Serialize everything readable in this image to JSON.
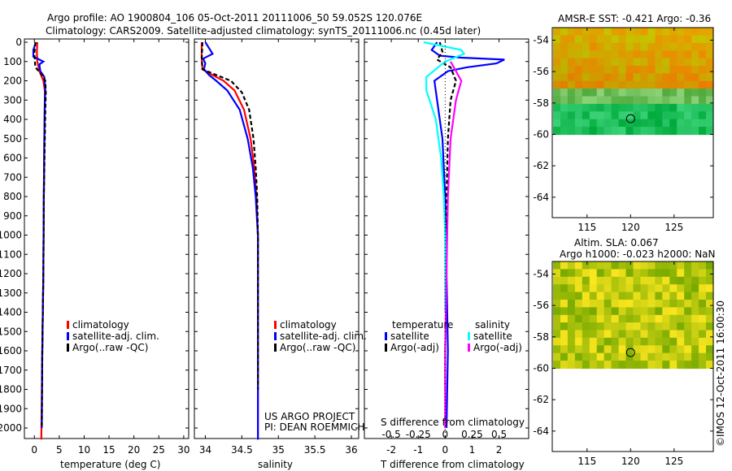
{
  "header": {
    "title_line1": "Argo profile: AO 1900804_106 05-Oct-2011 20111006_50 59.052S 120.076E",
    "title_line2": "Climatology: CARS2009. Satellite-adjusted climatology: synTS_20111006.nc (0.45d later)"
  },
  "credit": "US ARGO PROJECT",
  "pi": "PI: DEAN ROEMMICH",
  "footer_stamp": "©IMOS 12-Oct-2011 16:00:30",
  "colors": {
    "climatology": "#ff0000",
    "satellite_clim": "#0000ff",
    "argo": "#000000",
    "sat_diff_temp": "#0000ff",
    "sat_diff_sal": "#00ffff",
    "argo_diff_sal": "#ff00ff"
  },
  "chart_data": [
    {
      "type": "line",
      "panel": "temperature",
      "xlabel": "temperature (deg C)",
      "xlim": [
        -2,
        31
      ],
      "xticks": [
        0,
        5,
        10,
        15,
        20,
        25,
        30
      ],
      "ylim": [
        0,
        2080
      ],
      "yticks": [
        0,
        100,
        200,
        300,
        400,
        500,
        600,
        700,
        800,
        900,
        1000,
        1100,
        1200,
        1300,
        1400,
        1500,
        1600,
        1700,
        1800,
        1900,
        2000
      ],
      "y_reversed": true,
      "legend": {
        "placement": "center",
        "entries": [
          "climatology",
          "satellite-adj. clim.",
          "Argo(..raw -QC)"
        ]
      },
      "series": [
        {
          "name": "climatology",
          "color": "#ff0000",
          "points": [
            [
              0.6,
              0
            ],
            [
              0.5,
              50
            ],
            [
              0.6,
              100
            ],
            [
              1.0,
              150
            ],
            [
              1.8,
              200
            ],
            [
              2.1,
              250
            ],
            [
              2.1,
              300
            ],
            [
              2.0,
              500
            ],
            [
              1.9,
              800
            ],
            [
              1.8,
              1200
            ],
            [
              1.6,
              1600
            ],
            [
              1.4,
              2060
            ]
          ]
        },
        {
          "name": "satellite-adj. clim.",
          "color": "#0000ff",
          "points": [
            [
              0.3,
              0
            ],
            [
              -0.2,
              40
            ],
            [
              -0.2,
              75
            ],
            [
              1.8,
              100
            ],
            [
              1.0,
              115
            ],
            [
              1.2,
              150
            ],
            [
              2.0,
              180
            ],
            [
              2.2,
              250
            ],
            [
              2.1,
              300
            ],
            [
              2.0,
              500
            ],
            [
              1.9,
              800
            ],
            [
              1.8,
              1200
            ],
            [
              1.6,
              1600
            ],
            [
              1.5,
              2000
            ]
          ]
        },
        {
          "name": "Argo(..raw -QC)",
          "color": "#000000",
          "points": [
            [
              0.2,
              0
            ],
            [
              0.0,
              60
            ],
            [
              0.2,
              130
            ],
            [
              1.6,
              170
            ],
            [
              2.2,
              200
            ],
            [
              2.3,
              260
            ],
            [
              2.2,
              350
            ],
            [
              2.1,
              500
            ],
            [
              1.9,
              800
            ],
            [
              1.8,
              1200
            ],
            [
              1.6,
              1600
            ],
            [
              1.5,
              2000
            ]
          ]
        }
      ]
    },
    {
      "type": "line",
      "panel": "salinity",
      "xlabel": "salinity",
      "xlim": [
        33.85,
        36.1
      ],
      "xticks": [
        34,
        34.5,
        35,
        35.5,
        36
      ],
      "ylim": [
        0,
        2080
      ],
      "y_reversed": true,
      "legend": {
        "placement": "center",
        "entries": [
          "climatology",
          "satellite-adj. clim.",
          "Argo(..raw -QC)"
        ]
      },
      "series": [
        {
          "name": "climatology",
          "color": "#ff0000",
          "points": [
            [
              33.95,
              0
            ],
            [
              33.95,
              80
            ],
            [
              33.96,
              140
            ],
            [
              34.1,
              170
            ],
            [
              34.25,
              200
            ],
            [
              34.4,
              250
            ],
            [
              34.53,
              350
            ],
            [
              34.62,
              500
            ],
            [
              34.67,
              650
            ],
            [
              34.7,
              800
            ],
            [
              34.72,
              1000
            ],
            [
              34.72,
              1500
            ],
            [
              34.72,
              2060
            ]
          ]
        },
        {
          "name": "satellite-adj. clim.",
          "color": "#0000ff",
          "points": [
            [
              34.0,
              0
            ],
            [
              34.1,
              60
            ],
            [
              33.97,
              85
            ],
            [
              34.0,
              110
            ],
            [
              33.98,
              140
            ],
            [
              34.05,
              170
            ],
            [
              34.15,
              200
            ],
            [
              34.3,
              250
            ],
            [
              34.47,
              350
            ],
            [
              34.58,
              500
            ],
            [
              34.65,
              650
            ],
            [
              34.69,
              800
            ],
            [
              34.72,
              1000
            ],
            [
              34.72,
              1500
            ],
            [
              34.72,
              2060
            ]
          ]
        },
        {
          "name": "Argo(..raw -QC)",
          "color": "#000000",
          "points": [
            [
              33.96,
              0
            ],
            [
              33.95,
              80
            ],
            [
              33.96,
              140
            ],
            [
              34.15,
              170
            ],
            [
              34.35,
              200
            ],
            [
              34.5,
              260
            ],
            [
              34.6,
              350
            ],
            [
              34.66,
              500
            ],
            [
              34.69,
              650
            ],
            [
              34.71,
              800
            ],
            [
              34.72,
              1000
            ],
            [
              34.72,
              1500
            ],
            [
              34.72,
              1800
            ]
          ]
        }
      ]
    },
    {
      "type": "line",
      "panel": "difference",
      "xlabel": "T difference from climatology",
      "xlabel_top": "S difference from climatology",
      "xlim": [
        -3,
        3.1
      ],
      "xticks": [
        -2,
        -1,
        0,
        1,
        2
      ],
      "sticks": [
        "-0.5",
        "-0.25",
        "0",
        "0.25",
        "0.5"
      ],
      "ylim": [
        0,
        2080
      ],
      "y_reversed": true,
      "legend": {
        "placement": "center",
        "group_temperature": "temperature",
        "group_salinity": "salinity",
        "entries": [
          "satellite",
          "Argo(-adj)",
          "satellite",
          "Argo(-adj)"
        ]
      },
      "series": [
        {
          "name": "satellite",
          "group": "temperature",
          "color": "#0000ff",
          "points": [
            [
              -0.3,
              0
            ],
            [
              -0.5,
              40
            ],
            [
              -0.2,
              70
            ],
            [
              0.6,
              80
            ],
            [
              2.2,
              90
            ],
            [
              1.9,
              110
            ],
            [
              0.8,
              130
            ],
            [
              0.1,
              150
            ],
            [
              -0.4,
              200
            ],
            [
              -0.3,
              300
            ],
            [
              -0.1,
              500
            ],
            [
              0.0,
              800
            ],
            [
              0.05,
              1200
            ],
            [
              0.1,
              1600
            ],
            [
              0.05,
              2000
            ]
          ]
        },
        {
          "name": "Argo(-adj)",
          "group": "temperature",
          "color": "#000000",
          "points": [
            [
              -0.2,
              0
            ],
            [
              -0.1,
              50
            ],
            [
              -0.3,
              90
            ],
            [
              0.2,
              130
            ],
            [
              0.4,
              200
            ],
            [
              0.2,
              300
            ],
            [
              0.1,
              500
            ],
            [
              0.05,
              800
            ],
            [
              0.05,
              1200
            ],
            [
              0.0,
              1600
            ],
            [
              0.0,
              1800
            ]
          ]
        },
        {
          "name": "satellite",
          "group": "salinity",
          "color": "#00ffff",
          "points": [
            [
              -0.8,
              0
            ],
            [
              0.6,
              40
            ],
            [
              0.7,
              60
            ],
            [
              0.0,
              100
            ],
            [
              -0.7,
              180
            ],
            [
              -0.7,
              250
            ],
            [
              -0.35,
              400
            ],
            [
              -0.15,
              600
            ],
            [
              -0.05,
              800
            ],
            [
              0.0,
              1000
            ],
            [
              0.0,
              1400
            ]
          ]
        },
        {
          "name": "Argo(-adj)",
          "group": "salinity",
          "color": "#ff00ff",
          "points": [
            [
              0.2,
              100
            ],
            [
              0.6,
              200
            ],
            [
              0.4,
              300
            ],
            [
              0.2,
              500
            ],
            [
              0.1,
              800
            ],
            [
              0.05,
              1200
            ],
            [
              0.0,
              1600
            ],
            [
              0.0,
              2000
            ]
          ]
        }
      ]
    },
    {
      "type": "heatmap",
      "panel": "sst_map",
      "title": "AMSR-E SST: -0.421  Argo: -0.36",
      "xlim": [
        111,
        129.5
      ],
      "ylim": [
        -65.3,
        -53.2
      ],
      "xticks": [
        115,
        120,
        125
      ],
      "yticks": [
        -54,
        -56,
        -58,
        -60,
        -62,
        -64
      ],
      "data_extent_lat": [
        -60,
        -53.2
      ],
      "marker": [
        120,
        -59
      ]
    },
    {
      "type": "heatmap",
      "panel": "sla_map",
      "title": "Altim. SLA: 0.067",
      "subtitle": "Argo h1000: -0.023 h2000: NaN",
      "xlim": [
        111,
        129.5
      ],
      "ylim": [
        -65.3,
        -53.2
      ],
      "xticks": [
        115,
        120,
        125
      ],
      "yticks": [
        -54,
        -56,
        -58,
        -60,
        -62,
        -64
      ],
      "data_extent_lat": [
        -60,
        -53.2
      ],
      "marker": [
        120,
        -59
      ]
    }
  ]
}
